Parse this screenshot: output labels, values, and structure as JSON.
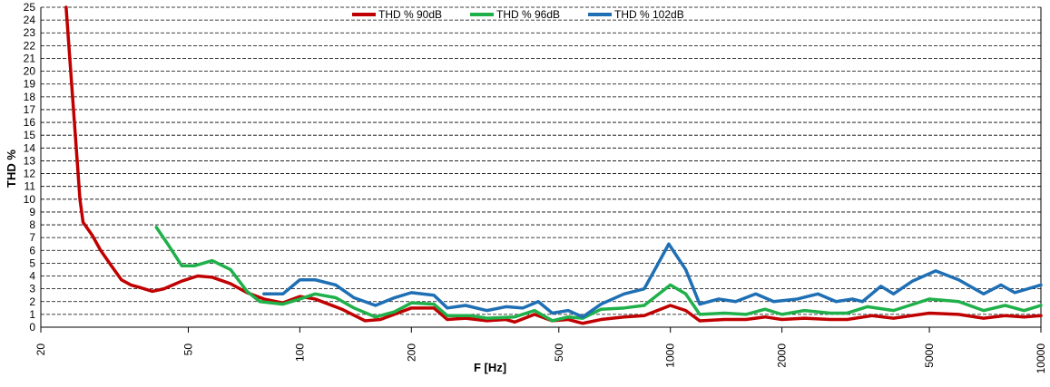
{
  "chart_data": {
    "type": "line",
    "xlabel": "F [Hz]",
    "ylabel": "THD %",
    "xscale": "log",
    "grid": true,
    "xlim": [
      20,
      10000
    ],
    "xticks": [
      20,
      50,
      100,
      200,
      500,
      1000,
      2000,
      5000,
      10000
    ],
    "ylim": [
      0,
      25
    ],
    "yticks": [
      0,
      1,
      2,
      3,
      4,
      5,
      6,
      7,
      8,
      9,
      10,
      11,
      12,
      13,
      14,
      15,
      16,
      17,
      18,
      19,
      20,
      21,
      22,
      23,
      24,
      25
    ],
    "legend": "top",
    "series": [
      {
        "name": "THD % 90dB",
        "color": "#c00000",
        "x": [
          23.4,
          24.5,
          25.5,
          26,
          27.5,
          29,
          31,
          33,
          35,
          37,
          40,
          43,
          48,
          53,
          58,
          65,
          72,
          80,
          90,
          100,
          110,
          130,
          150,
          165,
          200,
          230,
          250,
          280,
          320,
          360,
          380,
          430,
          480,
          530,
          580,
          650,
          750,
          850,
          1000,
          1100,
          1200,
          1400,
          1600,
          1800,
          2000,
          2300,
          2700,
          3000,
          3500,
          4000,
          5000,
          6000,
          7000,
          8000,
          9000,
          10000
        ],
        "values": [
          25,
          17,
          10,
          8.2,
          7.2,
          6,
          4.8,
          3.7,
          3.3,
          3.1,
          2.8,
          3,
          3.6,
          4,
          3.9,
          3.4,
          2.7,
          2.2,
          1.9,
          2.4,
          2.2,
          1.4,
          0.5,
          0.6,
          1.5,
          1.5,
          0.6,
          0.7,
          0.5,
          0.6,
          0.4,
          1,
          0.5,
          0.6,
          0.3,
          0.6,
          0.8,
          0.9,
          1.7,
          1.3,
          0.5,
          0.6,
          0.6,
          0.8,
          0.6,
          0.7,
          0.6,
          0.6,
          0.9,
          0.7,
          1.1,
          1,
          0.7,
          0.9,
          0.8,
          0.9
        ]
      },
      {
        "name": "THD % 96dB",
        "color": "#1fb04a",
        "x": [
          41,
          44,
          48,
          52,
          58,
          65,
          72,
          78,
          90,
          100,
          110,
          125,
          140,
          160,
          180,
          200,
          230,
          250,
          290,
          320,
          380,
          430,
          480,
          530,
          580,
          650,
          750,
          850,
          1000,
          1100,
          1200,
          1400,
          1600,
          1800,
          2000,
          2300,
          2700,
          3000,
          3400,
          4000,
          5000,
          6000,
          7000,
          8000,
          9000,
          10000
        ],
        "values": [
          7.8,
          6.5,
          4.8,
          4.8,
          5.2,
          4.5,
          2.8,
          2,
          1.8,
          2.2,
          2.6,
          2.3,
          1.5,
          0.8,
          1.2,
          1.9,
          1.8,
          0.9,
          0.9,
          0.7,
          0.8,
          1.3,
          0.5,
          0.8,
          0.7,
          1.4,
          1.5,
          1.7,
          3.3,
          2.6,
          1,
          1.1,
          1,
          1.4,
          1,
          1.3,
          1.1,
          1.1,
          1.6,
          1.3,
          2.2,
          2,
          1.3,
          1.7,
          1.3,
          1.7
        ]
      },
      {
        "name": "THD % 102dB",
        "color": "#1f6fb4",
        "x": [
          80,
          90,
          100,
          110,
          125,
          140,
          160,
          180,
          200,
          230,
          250,
          280,
          320,
          360,
          400,
          440,
          480,
          530,
          580,
          650,
          750,
          850,
          920,
          990,
          1100,
          1200,
          1350,
          1500,
          1700,
          1900,
          2200,
          2500,
          2800,
          3100,
          3300,
          3700,
          4000,
          4500,
          5200,
          6000,
          7000,
          7800,
          8500,
          10000
        ],
        "values": [
          2.6,
          2.6,
          3.7,
          3.7,
          3.3,
          2.3,
          1.7,
          2.3,
          2.7,
          2.5,
          1.5,
          1.7,
          1.3,
          1.6,
          1.5,
          2,
          1.1,
          1.3,
          0.8,
          1.8,
          2.6,
          3,
          4.8,
          6.5,
          4.5,
          1.8,
          2.2,
          2,
          2.6,
          2,
          2.2,
          2.6,
          2,
          2.2,
          2,
          3.2,
          2.6,
          3.6,
          4.4,
          3.7,
          2.6,
          3.3,
          2.7,
          3.3
        ]
      }
    ]
  }
}
